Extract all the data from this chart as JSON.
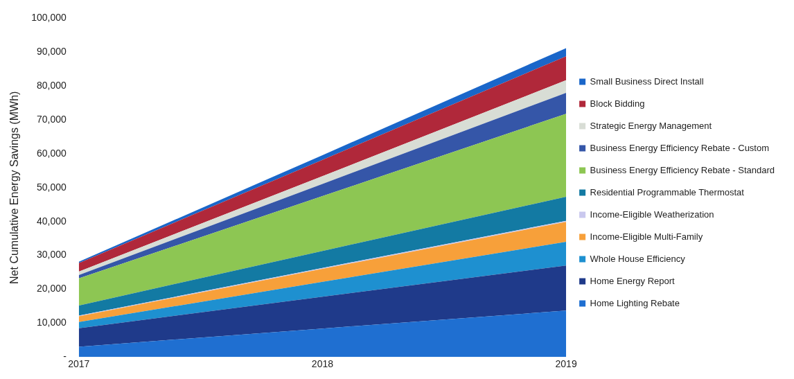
{
  "chart_data": {
    "type": "area",
    "stacked": true,
    "ylabel": "Net Cumulative Energy Savings (MWh)",
    "categories": [
      "2017",
      "2018",
      "2019"
    ],
    "ylim": [
      0,
      100000
    ],
    "yticks": [
      {
        "value": 0,
        "label": "-"
      },
      {
        "value": 10000,
        "label": "10,000"
      },
      {
        "value": 20000,
        "label": "20,000"
      },
      {
        "value": 30000,
        "label": "30,000"
      },
      {
        "value": 40000,
        "label": "40,000"
      },
      {
        "value": 50000,
        "label": "50,000"
      },
      {
        "value": 60000,
        "label": "60,000"
      },
      {
        "value": 70000,
        "label": "70,000"
      },
      {
        "value": 80000,
        "label": "80,000"
      },
      {
        "value": 90000,
        "label": "90,000"
      },
      {
        "value": 100000,
        "label": "100,000"
      }
    ],
    "grid": false,
    "legend": "right",
    "series": [
      {
        "name": "Home Lighting Rebate",
        "color": "#1f6fd1",
        "values": [
          3000,
          8400,
          13700
        ]
      },
      {
        "name": "Home Energy Report",
        "color": "#1f3a8a",
        "values": [
          5500,
          9400,
          13300
        ]
      },
      {
        "name": "Whole House Efficiency",
        "color": "#1e90d0",
        "values": [
          1800,
          4400,
          7000
        ]
      },
      {
        "name": "Income-Eligible Multi-Family",
        "color": "#f7a03a",
        "values": [
          1700,
          3800,
          5900
        ]
      },
      {
        "name": "Income-Eligible Weatherization",
        "color": "#c9c8ee",
        "values": [
          200,
          300,
          300
        ]
      },
      {
        "name": "Residential Programmable Thermostat",
        "color": "#137aa3",
        "values": [
          3000,
          5000,
          7100
        ]
      },
      {
        "name": "Business Energy Efficiency Rebate - Standard",
        "color": "#8dc653",
        "values": [
          8000,
          16200,
          24500
        ]
      },
      {
        "name": "Business Energy Efficiency Rebate - Custom",
        "color": "#3556a8",
        "values": [
          1000,
          3600,
          6200
        ]
      },
      {
        "name": "Strategic Energy Management",
        "color": "#d8ddd5",
        "values": [
          1000,
          2300,
          3700
        ]
      },
      {
        "name": "Block Bidding",
        "color": "#b0283a",
        "values": [
          2500,
          4800,
          7100
        ]
      },
      {
        "name": "Small Business Direct Install",
        "color": "#1a66c9",
        "values": [
          400,
          1400,
          2400
        ]
      }
    ]
  }
}
